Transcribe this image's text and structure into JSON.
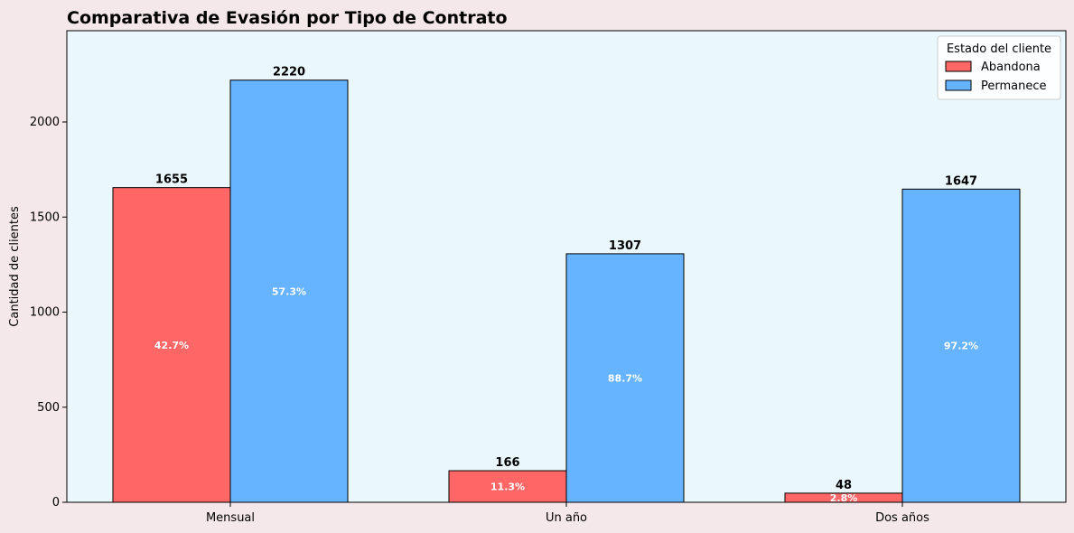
{
  "chart_data": {
    "type": "bar",
    "title": "Comparativa de Evasión por Tipo de Contrato",
    "xlabel": "",
    "ylabel": "Cantidad de clientes",
    "categories": [
      "Mensual",
      "Un año",
      "Dos años"
    ],
    "ylim": [
      0,
      2480
    ],
    "yticks": [
      0,
      500,
      1000,
      1500,
      2000
    ],
    "series": [
      {
        "name": "Abandona",
        "color": "#ff6666",
        "values": [
          1655,
          166,
          48
        ],
        "percent_labels": [
          "42.7%",
          "11.3%",
          "2.8%"
        ]
      },
      {
        "name": "Permanece",
        "color": "#66b3ff",
        "values": [
          2220,
          1307,
          1647
        ],
        "percent_labels": [
          "57.3%",
          "88.7%",
          "97.2%"
        ]
      }
    ],
    "legend": {
      "title": "Estado del cliente",
      "position": "top-right"
    },
    "grid": false,
    "plot_background": "#eaf7fc"
  }
}
